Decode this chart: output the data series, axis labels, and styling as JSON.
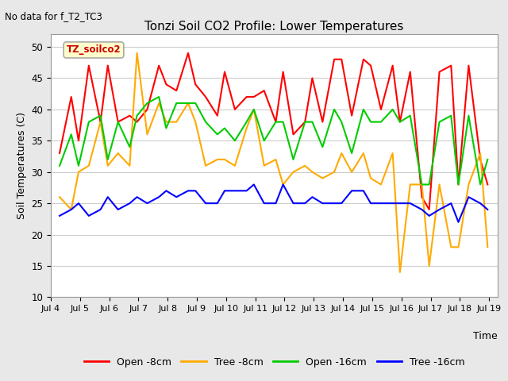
{
  "title": "Tonzi Soil CO2 Profile: Lower Temperatures",
  "subtitle": "No data for f_T2_TC3",
  "ylabel": "Soil Temperatures (C)",
  "xlabel": "Time",
  "ylim": [
    10,
    52
  ],
  "yticks": [
    10,
    15,
    20,
    25,
    30,
    35,
    40,
    45,
    50
  ],
  "fig_bg_color": "#e8e8e8",
  "plot_bg_color": "#ffffff",
  "legend_label": "TZ_soilco2",
  "legend_box_color": "#ffffcc",
  "legend_box_edge": "#aaaaaa",
  "series": {
    "open_8cm": {
      "label": "Open -8cm",
      "color": "#ff0000",
      "lw": 1.5
    },
    "tree_8cm": {
      "label": "Tree -8cm",
      "color": "#ffaa00",
      "lw": 1.5
    },
    "open_16cm": {
      "label": "Open -16cm",
      "color": "#00cc00",
      "lw": 1.5
    },
    "tree_16cm": {
      "label": "Tree -16cm",
      "color": "#0000ff",
      "lw": 1.5
    }
  },
  "xtick_labels": [
    "Jul 4",
    "Jul 5",
    "Jul 6",
    "Jul 7",
    "Jul 8",
    "Jul 9",
    "Jul 10",
    "Jul 11",
    "Jul 12",
    "Jul 13",
    "Jul 14",
    "Jul 15",
    "Jul 16",
    "Jul 17",
    "Jul 18",
    "Jul 19"
  ],
  "open_8cm_x": [
    4.3,
    4.7,
    4.95,
    5.3,
    5.7,
    5.95,
    6.3,
    6.7,
    6.95,
    7.3,
    7.7,
    7.95,
    8.3,
    8.7,
    8.95,
    9.3,
    9.7,
    9.95,
    10.3,
    10.7,
    10.95,
    11.3,
    11.7,
    11.95,
    12.3,
    12.7,
    12.95,
    13.3,
    13.7,
    13.95,
    14.3,
    14.7,
    14.95,
    15.3,
    15.7,
    15.95,
    16.3,
    16.7,
    16.95,
    17.3,
    17.7,
    17.95,
    18.3,
    18.7,
    18.95
  ],
  "open_8cm_y": [
    33,
    42,
    35,
    47,
    38,
    47,
    38,
    39,
    38,
    40,
    47,
    44,
    43,
    49,
    44,
    42,
    39,
    46,
    40,
    42,
    42,
    43,
    38,
    46,
    36,
    38,
    45,
    38,
    48,
    48,
    39,
    48,
    47,
    40,
    47,
    38,
    46,
    26,
    24,
    46,
    47,
    28,
    47,
    32,
    28
  ],
  "tree_8cm_x": [
    4.3,
    4.7,
    4.95,
    5.3,
    5.7,
    5.95,
    6.3,
    6.7,
    6.95,
    7.3,
    7.7,
    7.95,
    8.3,
    8.7,
    8.95,
    9.3,
    9.7,
    9.95,
    10.3,
    10.7,
    10.95,
    11.3,
    11.7,
    11.95,
    12.3,
    12.7,
    12.95,
    13.3,
    13.7,
    13.95,
    14.3,
    14.7,
    14.95,
    15.3,
    15.7,
    15.95,
    16.3,
    16.7,
    16.95,
    17.3,
    17.7,
    17.95,
    18.3,
    18.7,
    18.95
  ],
  "tree_8cm_y": [
    26,
    24,
    30,
    31,
    38,
    31,
    33,
    31,
    49,
    36,
    41,
    38,
    38,
    41,
    38,
    31,
    32,
    32,
    31,
    37,
    40,
    31,
    32,
    28,
    30,
    31,
    30,
    29,
    30,
    33,
    30,
    33,
    29,
    28,
    33,
    14,
    28,
    28,
    15,
    28,
    18,
    18,
    28,
    33,
    18
  ],
  "open_16cm_x": [
    4.3,
    4.7,
    4.95,
    5.3,
    5.7,
    5.95,
    6.3,
    6.7,
    6.95,
    7.3,
    7.7,
    7.95,
    8.3,
    8.7,
    8.95,
    9.3,
    9.7,
    9.95,
    10.3,
    10.7,
    10.95,
    11.3,
    11.7,
    11.95,
    12.3,
    12.7,
    12.95,
    13.3,
    13.7,
    13.95,
    14.3,
    14.7,
    14.95,
    15.3,
    15.7,
    15.95,
    16.3,
    16.7,
    16.95,
    17.3,
    17.7,
    17.95,
    18.3,
    18.7,
    18.95
  ],
  "open_16cm_y": [
    31,
    36,
    31,
    38,
    39,
    32,
    38,
    34,
    39,
    41,
    42,
    37,
    41,
    41,
    41,
    38,
    36,
    37,
    35,
    38,
    40,
    35,
    38,
    38,
    32,
    38,
    38,
    34,
    40,
    38,
    33,
    40,
    38,
    38,
    40,
    38,
    39,
    28,
    28,
    38,
    39,
    28,
    39,
    28,
    32
  ],
  "tree_16cm_x": [
    4.3,
    4.7,
    4.95,
    5.3,
    5.7,
    5.95,
    6.3,
    6.7,
    6.95,
    7.3,
    7.7,
    7.95,
    8.3,
    8.7,
    8.95,
    9.3,
    9.7,
    9.95,
    10.3,
    10.7,
    10.95,
    11.3,
    11.7,
    11.95,
    12.3,
    12.7,
    12.95,
    13.3,
    13.7,
    13.95,
    14.3,
    14.7,
    14.95,
    15.3,
    15.7,
    15.95,
    16.3,
    16.7,
    16.95,
    17.3,
    17.7,
    17.95,
    18.3,
    18.7,
    18.95
  ],
  "tree_16cm_y": [
    23,
    24,
    25,
    23,
    24,
    26,
    24,
    25,
    26,
    25,
    26,
    27,
    26,
    27,
    27,
    25,
    25,
    27,
    27,
    27,
    28,
    25,
    25,
    28,
    25,
    25,
    26,
    25,
    25,
    25,
    27,
    27,
    25,
    25,
    25,
    25,
    25,
    24,
    23,
    24,
    25,
    22,
    26,
    25,
    24
  ]
}
